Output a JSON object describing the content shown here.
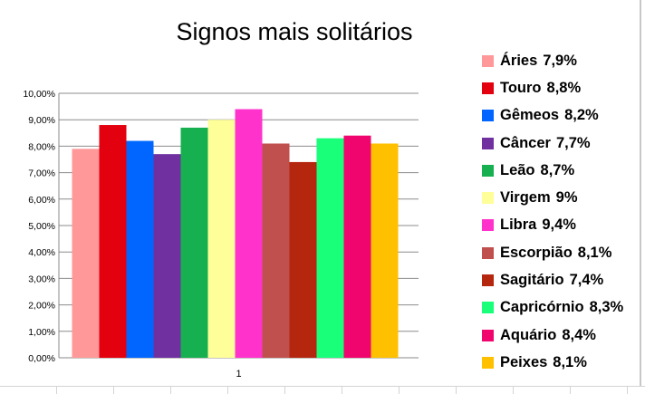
{
  "chart_data": {
    "type": "bar",
    "title": "Signos mais solitários",
    "categories": [
      "1"
    ],
    "ylim": [
      0,
      10
    ],
    "yticks": [
      "0,00%",
      "1,00%",
      "2,00%",
      "3,00%",
      "4,00%",
      "5,00%",
      "6,00%",
      "7,00%",
      "8,00%",
      "9,00%",
      "10,00%"
    ],
    "grid": true,
    "legend_position": "right",
    "series": [
      {
        "name": "Áries",
        "label": "7,9%",
        "value": 7.9,
        "color": "#ff9999"
      },
      {
        "name": "Touro",
        "label": "8,8%",
        "value": 8.8,
        "color": "#e3000f"
      },
      {
        "name": "Gêmeos",
        "label": "8,2%",
        "value": 8.2,
        "color": "#0066ff"
      },
      {
        "name": "Câncer",
        "label": "7,7%",
        "value": 7.7,
        "color": "#7030a0"
      },
      {
        "name": "Leão",
        "label": "8,7%",
        "value": 8.7,
        "color": "#17b050"
      },
      {
        "name": "Virgem",
        "label": "9%",
        "value": 9.0,
        "color": "#ffff99"
      },
      {
        "name": "Libra",
        "label": "9,4%",
        "value": 9.4,
        "color": "#ff33cc"
      },
      {
        "name": "Escorpião",
        "label": "8,1%",
        "value": 8.1,
        "color": "#c0504d"
      },
      {
        "name": "Sagitário",
        "label": "7,4%",
        "value": 7.4,
        "color": "#b5260e"
      },
      {
        "name": "Capricórnio",
        "label": "8,3%",
        "value": 8.3,
        "color": "#1aff7a"
      },
      {
        "name": "Aquário",
        "label": "8,4%",
        "value": 8.4,
        "color": "#f0056e"
      },
      {
        "name": "Peixes",
        "label": "8,1%",
        "value": 8.1,
        "color": "#ffc000"
      }
    ]
  }
}
